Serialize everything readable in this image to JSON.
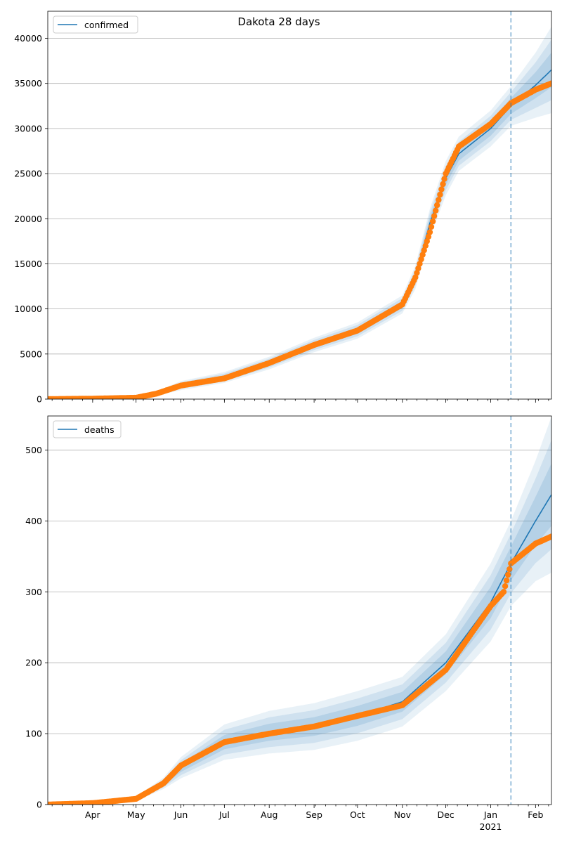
{
  "title": "Dakota 28 days",
  "colors": {
    "model_line": "#1f77b4",
    "band": "#1f77b4",
    "observed": "#ff7f0e",
    "forecast_marker": "#1f77b4",
    "grid": "#b0b0b0"
  },
  "chart_data": [
    {
      "type": "line",
      "name": "confirmed-panel",
      "legend": {
        "entries": [
          "confirmed"
        ],
        "placement": "top-left"
      },
      "x_range": [
        "2020-03-01",
        "2021-02-12"
      ],
      "ylim": [
        0,
        43000
      ],
      "yticks": [
        0,
        5000,
        10000,
        15000,
        20000,
        25000,
        30000,
        35000,
        40000
      ],
      "grid": "horizontal",
      "forecast_start": "2021-01-15",
      "band_spread": [
        0.04,
        0.08,
        0.14
      ],
      "series": [
        {
          "name": "confirmed",
          "kind": "model-line",
          "x": [
            "2020-03-01",
            "2020-04-01",
            "2020-05-01",
            "2020-05-15",
            "2020-06-01",
            "2020-07-01",
            "2020-08-01",
            "2020-09-01",
            "2020-10-01",
            "2020-11-01",
            "2020-11-10",
            "2020-11-20",
            "2020-12-01",
            "2020-12-10",
            "2021-01-01",
            "2021-01-15",
            "2021-02-01",
            "2021-02-12"
          ],
          "values": [
            0,
            50,
            150,
            600,
            1500,
            2400,
            4000,
            6000,
            7600,
            10500,
            13500,
            19500,
            24500,
            27200,
            30000,
            32500,
            34800,
            36500
          ],
          "band_uncertainty": [
            0,
            20,
            60,
            250,
            500,
            600,
            700,
            800,
            900,
            1000,
            1300,
            1600,
            1900,
            1900,
            2000,
            2200,
            3600,
            4800
          ]
        },
        {
          "kind": "observed-points",
          "x": [
            "2020-03-01",
            "2020-04-01",
            "2020-05-01",
            "2020-05-15",
            "2020-06-01",
            "2020-07-01",
            "2020-08-01",
            "2020-09-01",
            "2020-10-01",
            "2020-11-01",
            "2020-11-10",
            "2020-11-20",
            "2020-11-25",
            "2020-12-01",
            "2020-12-10",
            "2021-01-01",
            "2021-01-15",
            "2021-02-01",
            "2021-02-12"
          ],
          "values": [
            0,
            50,
            150,
            600,
            1500,
            2300,
            4000,
            6000,
            7600,
            10500,
            13500,
            18500,
            21500,
            25000,
            28000,
            30500,
            32800,
            34300,
            35000
          ]
        }
      ]
    },
    {
      "type": "line",
      "name": "deaths-panel",
      "legend": {
        "entries": [
          "deaths"
        ],
        "placement": "top-left"
      },
      "x_range": [
        "2020-03-01",
        "2021-02-12"
      ],
      "ylim": [
        0,
        548
      ],
      "yticks": [
        0,
        100,
        200,
        300,
        400,
        500
      ],
      "grid": "horizontal",
      "forecast_start": "2021-01-15",
      "series": [
        {
          "name": "deaths",
          "kind": "model-line",
          "x": [
            "2020-03-01",
            "2020-04-01",
            "2020-05-01",
            "2020-05-20",
            "2020-06-01",
            "2020-07-01",
            "2020-08-01",
            "2020-09-01",
            "2020-10-01",
            "2020-11-01",
            "2020-12-01",
            "2021-01-01",
            "2021-01-15",
            "2021-02-01",
            "2021-02-12"
          ],
          "values": [
            0,
            2,
            8,
            30,
            52,
            88,
            102,
            110,
            125,
            145,
            200,
            285,
            340,
            400,
            437
          ],
          "band_uncertainty": [
            0,
            1,
            3,
            8,
            15,
            25,
            30,
            33,
            35,
            35,
            40,
            55,
            60,
            85,
            110
          ]
        },
        {
          "kind": "observed-points",
          "x": [
            "2020-03-01",
            "2020-04-01",
            "2020-05-01",
            "2020-05-20",
            "2020-06-01",
            "2020-07-01",
            "2020-08-01",
            "2020-09-01",
            "2020-10-01",
            "2020-11-01",
            "2020-12-01",
            "2021-01-01",
            "2021-01-10",
            "2021-01-15",
            "2021-02-01",
            "2021-02-12"
          ],
          "values": [
            0,
            2,
            8,
            30,
            55,
            88,
            100,
            110,
            125,
            140,
            190,
            280,
            300,
            340,
            368,
            378
          ]
        }
      ]
    }
  ],
  "x_axis": {
    "ticks": [
      {
        "date": "2020-04-01",
        "label": "Apr",
        "sublabel": ""
      },
      {
        "date": "2020-05-01",
        "label": "May",
        "sublabel": ""
      },
      {
        "date": "2020-06-01",
        "label": "Jun",
        "sublabel": ""
      },
      {
        "date": "2020-07-01",
        "label": "Jul",
        "sublabel": ""
      },
      {
        "date": "2020-08-01",
        "label": "Aug",
        "sublabel": ""
      },
      {
        "date": "2020-09-01",
        "label": "Sep",
        "sublabel": ""
      },
      {
        "date": "2020-10-01",
        "label": "Oct",
        "sublabel": ""
      },
      {
        "date": "2020-11-01",
        "label": "Nov",
        "sublabel": ""
      },
      {
        "date": "2020-12-01",
        "label": "Dec",
        "sublabel": ""
      },
      {
        "date": "2021-01-01",
        "label": "Jan",
        "sublabel": "2021"
      },
      {
        "date": "2021-02-01",
        "label": "Feb",
        "sublabel": ""
      }
    ]
  }
}
